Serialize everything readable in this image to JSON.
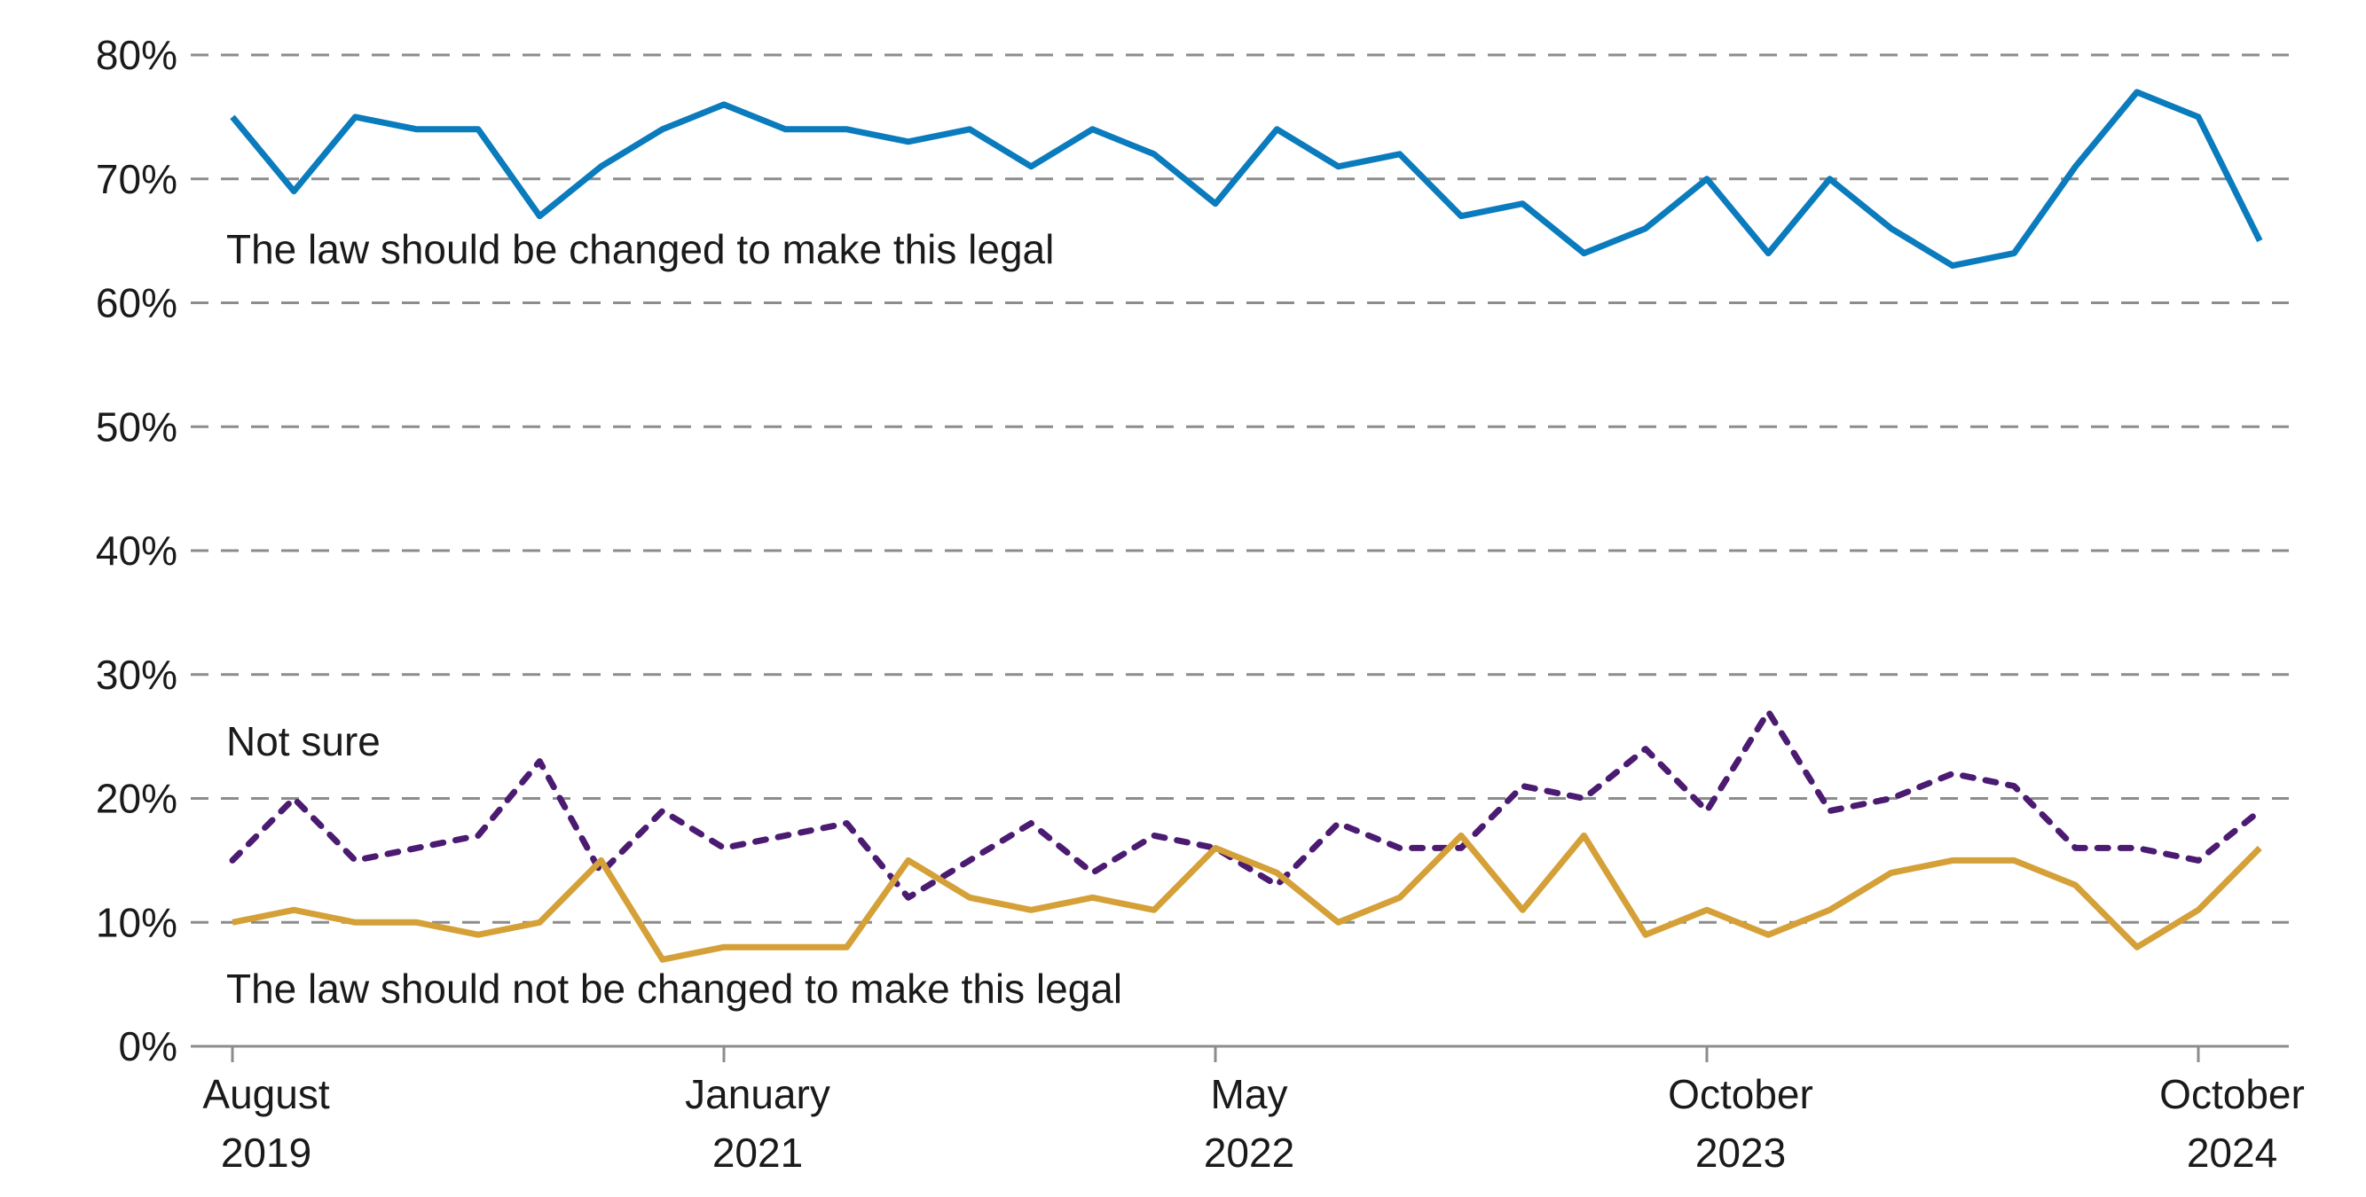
{
  "chart_data": {
    "type": "line",
    "y_ticks": [
      "0%",
      "10%",
      "20%",
      "30%",
      "40%",
      "50%",
      "60%",
      "70%",
      "80%"
    ],
    "ylim": [
      0,
      80
    ],
    "x_ticks": [
      {
        "index": 0,
        "line1": "August",
        "line2": "2019"
      },
      {
        "index": 8,
        "line1": "January",
        "line2": "2021"
      },
      {
        "index": 16,
        "line1": "May",
        "line2": "2022"
      },
      {
        "index": 24,
        "line1": "October",
        "line2": "2023"
      },
      {
        "index": 32,
        "line1": "October",
        "line2": "2024"
      }
    ],
    "grid": true,
    "series": [
      {
        "name": "The law should be changed to make this legal",
        "color": "#0a7bbd",
        "style": "solid",
        "values": [
          75,
          69,
          75,
          74,
          74,
          67,
          71,
          74,
          76,
          74,
          74,
          73,
          74,
          71,
          74,
          72,
          68,
          74,
          71,
          72,
          67,
          68,
          64,
          66,
          70,
          64,
          70,
          66,
          63,
          64,
          71,
          77,
          75,
          65
        ]
      },
      {
        "name": "Not sure",
        "color": "#4b1b72",
        "style": "dotted",
        "values": [
          15,
          20,
          15,
          16,
          17,
          23,
          14,
          19,
          16,
          17,
          18,
          12,
          15,
          18,
          14,
          17,
          16,
          13,
          18,
          16,
          16,
          21,
          20,
          24,
          19,
          27,
          19,
          20,
          22,
          21,
          16,
          16,
          15,
          19
        ]
      },
      {
        "name": "The law should not be changed to make this legal",
        "color": "#d4a037",
        "style": "solid",
        "values": [
          10,
          11,
          10,
          10,
          9,
          10,
          15,
          7,
          8,
          8,
          8,
          15,
          12,
          11,
          12,
          11,
          16,
          14,
          10,
          12,
          17,
          11,
          17,
          9,
          11,
          9,
          11,
          14,
          15,
          15,
          13,
          8,
          11,
          16
        ]
      }
    ]
  }
}
